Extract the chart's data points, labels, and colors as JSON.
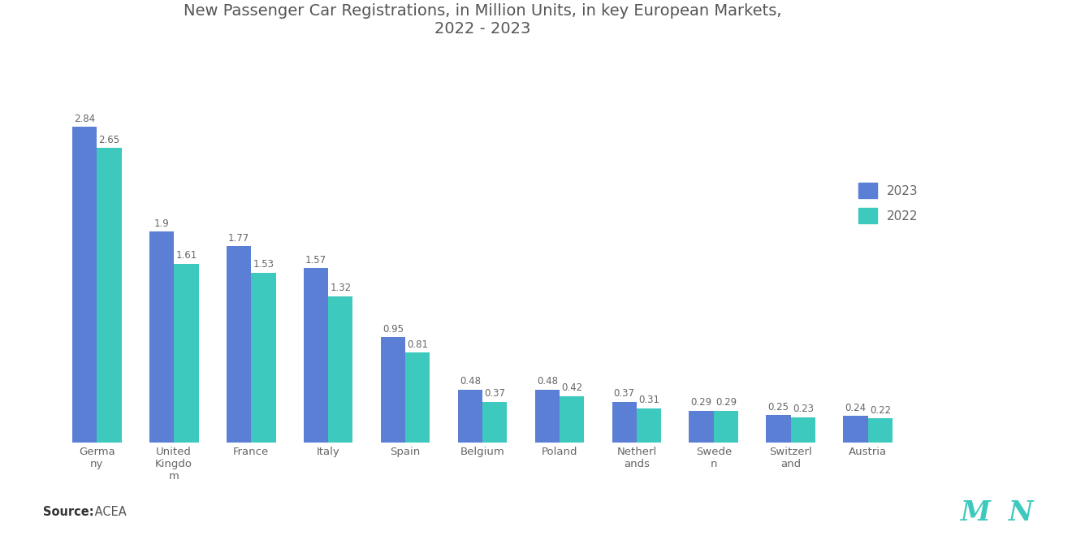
{
  "title": "New Passenger Car Registrations, in Million Units, in key European Markets,\n2022 - 2023",
  "categories": [
    "Germa\nny",
    "United\nKingdo\nm",
    "France",
    "Italy",
    "Spain",
    "Belgium",
    "Poland",
    "Netherl\nands",
    "Swede\nn",
    "Switzerl\nand",
    "Austria"
  ],
  "values_2023": [
    2.84,
    1.9,
    1.77,
    1.57,
    0.95,
    0.48,
    0.48,
    0.37,
    0.29,
    0.25,
    0.24
  ],
  "values_2022": [
    2.65,
    1.61,
    1.53,
    1.32,
    0.81,
    0.37,
    0.42,
    0.31,
    0.29,
    0.23,
    0.22
  ],
  "color_2023": "#5b7fd4",
  "color_2022": "#3ec9be",
  "legend_labels": [
    "2023",
    "2022"
  ],
  "source": "ACEA",
  "ylim": [
    0,
    3.4
  ],
  "bar_width": 0.32,
  "title_fontsize": 14,
  "tick_fontsize": 9.5,
  "legend_fontsize": 11,
  "source_fontsize": 10.5,
  "background_color": "#ffffff",
  "value_label_fontsize": 8.5
}
